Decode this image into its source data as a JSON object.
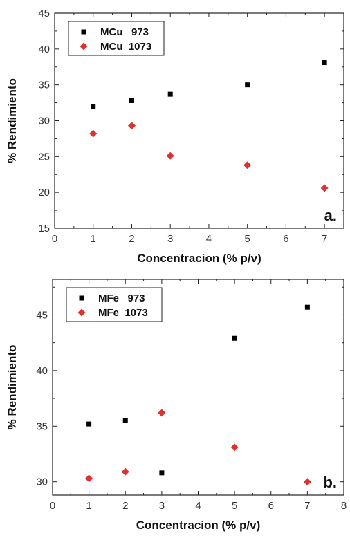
{
  "chart_data": [
    {
      "type": "scatter",
      "panel_label": "a.",
      "xlabel": "Concentracion (% p/v)",
      "ylabel": "% Rendimiento",
      "xlim": [
        0,
        7.5
      ],
      "ylim": [
        15,
        45
      ],
      "xticks": [
        "0",
        "1",
        "2",
        "3",
        "4",
        "5",
        "6",
        "7"
      ],
      "yticks": [
        "15",
        "20",
        "25",
        "30",
        "35",
        "40",
        "45"
      ],
      "legend_position": "top-left",
      "grid": false,
      "series": [
        {
          "name": "MCu   973",
          "marker": "square",
          "color": "#000000",
          "x": [
            1,
            2,
            3,
            5,
            7
          ],
          "y": [
            32.0,
            32.8,
            33.7,
            35.0,
            38.1
          ]
        },
        {
          "name": "MCu  1073",
          "marker": "diamond",
          "color": "#e03131",
          "x": [
            1,
            2,
            3,
            5,
            7
          ],
          "y": [
            28.2,
            29.3,
            25.1,
            23.8,
            20.6
          ]
        }
      ]
    },
    {
      "type": "scatter",
      "panel_label": "b.",
      "xlabel": "Concentracion (% p/v)",
      "ylabel": "% Rendimiento",
      "xlim": [
        0,
        8
      ],
      "ylim": [
        28.8,
        48.2
      ],
      "xticks": [
        "0",
        "1",
        "2",
        "3",
        "4",
        "5",
        "6",
        "7",
        "8"
      ],
      "yticks": [
        "30",
        "35",
        "40",
        "45"
      ],
      "legend_position": "top-left",
      "grid": false,
      "series": [
        {
          "name": "MFe   973",
          "marker": "square",
          "color": "#000000",
          "x": [
            1,
            2,
            3,
            5,
            7
          ],
          "y": [
            35.2,
            35.5,
            30.8,
            42.9,
            45.7
          ]
        },
        {
          "name": "MFe  1073",
          "marker": "diamond",
          "color": "#e03131",
          "x": [
            1,
            2,
            3,
            5,
            7
          ],
          "y": [
            30.3,
            30.9,
            36.2,
            33.1,
            30.0
          ]
        }
      ]
    }
  ]
}
